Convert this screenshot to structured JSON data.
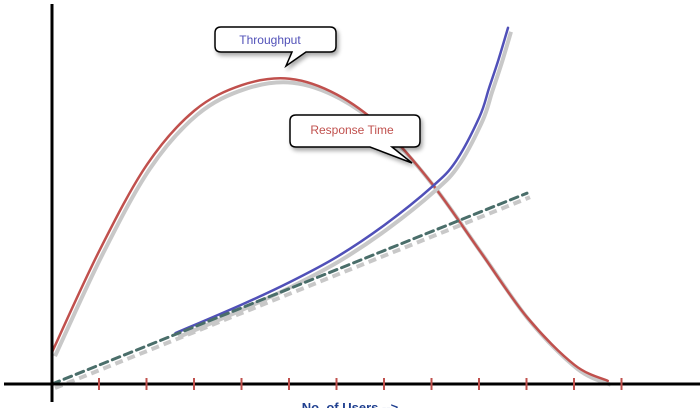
{
  "chart_data": {
    "type": "line",
    "title": "",
    "xlabel": "No. of Users -->",
    "ylabel": "",
    "xlim": [
      0,
      12
    ],
    "ylim": [
      0,
      10
    ],
    "x_ticks": [
      1,
      2,
      3,
      4,
      5,
      6,
      7,
      8,
      9,
      10,
      11,
      12
    ],
    "grid": false,
    "legend": "none",
    "series": [
      {
        "name": "Throughput",
        "color": "#c0504d",
        "x": [
          0,
          1,
          2,
          3,
          4,
          5,
          6,
          7,
          8,
          9,
          10,
          11,
          11.7
        ],
        "y": [
          1.0,
          4.2,
          6.9,
          8.6,
          9.4,
          9.6,
          9.1,
          8.0,
          6.3,
          4.2,
          2.1,
          0.6,
          0.1
        ]
      },
      {
        "name": "Response Time",
        "color": "#5050b8",
        "x": [
          2.6,
          4,
          5,
          6,
          7,
          8,
          8.5,
          9,
          9.2,
          9.4,
          9.6
        ],
        "y": [
          1.6,
          2.5,
          3.2,
          4.0,
          5.0,
          6.2,
          7.0,
          8.4,
          9.3,
          10.2,
          11.2
        ]
      },
      {
        "name": "",
        "color": "#4a6e6a",
        "dashed": true,
        "x": [
          0,
          10
        ],
        "y": [
          0,
          6.0
        ]
      }
    ],
    "annotations": [
      {
        "text": "Throughput",
        "target_series": "Throughput"
      },
      {
        "text": "Response Time",
        "target_series": "Response Time"
      }
    ]
  }
}
